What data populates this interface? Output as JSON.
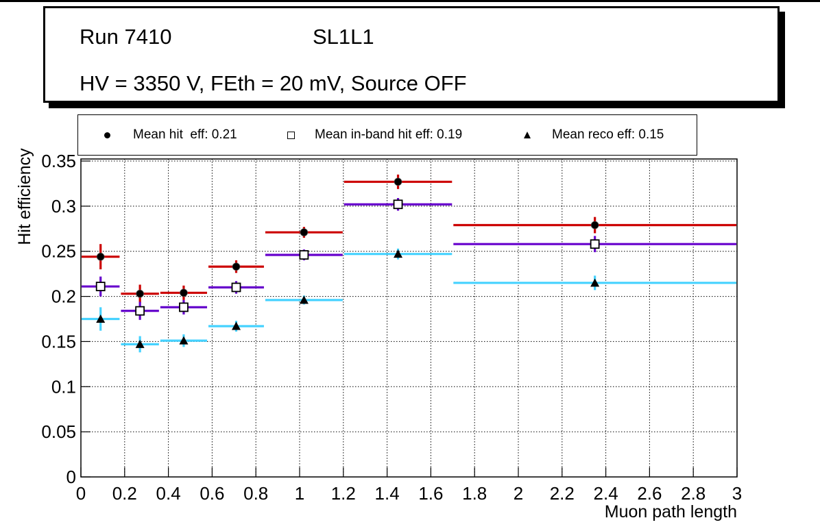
{
  "title_box": {
    "line1_left": "Run 7410",
    "line1_right": "SL1L1",
    "line2": "HV = 3350 V, FEth = 20 mV, Source OFF"
  },
  "legend": {
    "entries": [
      {
        "marker": "filled-circle",
        "label": "Mean hit  eff: 0.21",
        "mean": 0.21
      },
      {
        "marker": "open-square",
        "label": "Mean in-band hit eff: 0.19",
        "mean": 0.19
      },
      {
        "marker": "filled-triangle",
        "label": "Mean reco eff: 0.15",
        "mean": 0.15
      }
    ]
  },
  "chart_data": {
    "type": "scatter",
    "title": "",
    "xlabel": "Muon path length",
    "ylabel": "Hit efficiency",
    "xlim": [
      0,
      3
    ],
    "ylim": [
      0,
      0.3523
    ],
    "x_tick_values": [
      0,
      0.2,
      0.4,
      0.6,
      0.8,
      1,
      1.2,
      1.4,
      1.6,
      1.8,
      2,
      2.2,
      2.4,
      2.6,
      2.8,
      3
    ],
    "x_tick_labels": [
      "0",
      "0.2",
      "0.4",
      "0.6",
      "0.8",
      "1",
      "1.2",
      "1.4",
      "1.6",
      "1.8",
      "2",
      "2.2",
      "2.4",
      "2.6",
      "2.8",
      "3"
    ],
    "y_tick_values": [
      0,
      0.05,
      0.1,
      0.15,
      0.2,
      0.25,
      0.3,
      0.35
    ],
    "y_tick_labels": [
      "0",
      "0.05",
      "0.1",
      "0.15",
      "0.2",
      "0.25",
      "0.3",
      "0.35"
    ],
    "grid": {
      "on": true,
      "style": "dotted",
      "color": "#000000"
    },
    "legend_position": "top-outside",
    "bin_edges": [
      0,
      0.18,
      0.36,
      0.58,
      0.84,
      1.2,
      1.7,
      3
    ],
    "bin_centers": [
      0.09,
      0.27,
      0.47,
      0.71,
      1.02,
      1.45,
      2.35
    ],
    "series": [
      {
        "name": "Mean hit eff",
        "marker": "filled-circle",
        "color": "#cc0000",
        "values": [
          0.244,
          0.203,
          0.204,
          0.233,
          0.271,
          0.327,
          0.279
        ],
        "yerr": [
          0.014,
          0.01,
          0.008,
          0.007,
          0.006,
          0.008,
          0.009
        ]
      },
      {
        "name": "Mean in-band hit eff",
        "marker": "open-square",
        "color": "#6600cc",
        "values": [
          0.211,
          0.184,
          0.188,
          0.21,
          0.246,
          0.302,
          0.258
        ],
        "yerr": [
          0.011,
          0.01,
          0.008,
          0.007,
          0.006,
          0.007,
          0.009
        ]
      },
      {
        "name": "Mean reco eff",
        "marker": "filled-triangle",
        "color": "#45d2ff",
        "values": [
          0.175,
          0.147,
          0.151,
          0.167,
          0.196,
          0.247,
          0.215
        ],
        "yerr": [
          0.013,
          0.009,
          0.007,
          0.006,
          0.005,
          0.006,
          0.008
        ]
      }
    ]
  }
}
